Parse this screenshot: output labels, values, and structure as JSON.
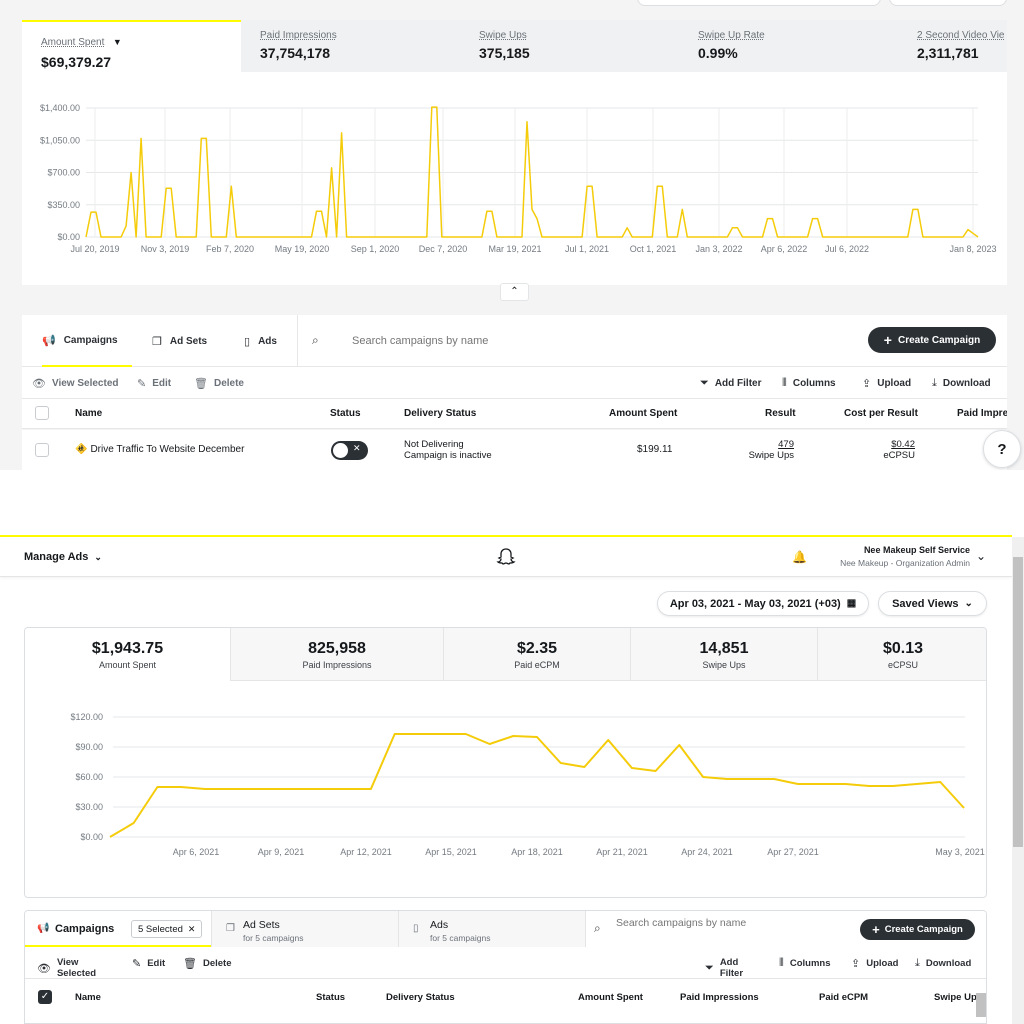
{
  "top": {
    "metrics": [
      {
        "label": "Amount Spent",
        "value": "$69,379.27"
      },
      {
        "label": "Paid Impressions",
        "value": "37,754,178"
      },
      {
        "label": "Swipe Ups",
        "value": "375,185"
      },
      {
        "label": "Swipe Up Rate",
        "value": "0.99%"
      },
      {
        "label": "2 Second Video Vie",
        "value": "2,311,781"
      }
    ],
    "tabs": [
      {
        "label": "Campaigns",
        "icon": "megaphone-icon"
      },
      {
        "label": "Ad Sets",
        "icon": "adsets-icon"
      },
      {
        "label": "Ads",
        "icon": "ad-phone-icon"
      }
    ],
    "search_placeholder": "Search campaigns by name",
    "create_label": "Create Campaign",
    "actions": {
      "view": "View Selected",
      "edit": "Edit",
      "delete": "Delete",
      "filter": "Add Filter",
      "columns": "Columns",
      "upload": "Upload",
      "download": "Download"
    },
    "columns": [
      "Name",
      "Status",
      "Delivery Status",
      "Amount Spent",
      "Result",
      "Cost per Result",
      "Paid Impres"
    ],
    "row": {
      "name": "Drive Traffic To Website December",
      "delivery_1": "Not Delivering",
      "delivery_2": "Campaign is inactive",
      "amount": "$199.11",
      "result": "479",
      "result_unit": "Swipe Ups",
      "cost": "$0.42",
      "cost_unit": "eCPSU"
    }
  },
  "bottom": {
    "manage_ads": "Manage Ads",
    "org_name": "Nee Makeup Self Service",
    "org_sub": "Nee Makeup - Organization Admin",
    "date_range": "Apr 03, 2021 - May 03, 2021 (+03)",
    "saved_views": "Saved Views",
    "metrics": [
      {
        "label": "Amount Spent",
        "value": "$1,943.75"
      },
      {
        "label": "Paid Impressions",
        "value": "825,958"
      },
      {
        "label": "Paid eCPM",
        "value": "$2.35"
      },
      {
        "label": "Swipe Ups",
        "value": "14,851"
      },
      {
        "label": "eCPSU",
        "value": "$0.13"
      }
    ],
    "tabs": {
      "campaigns": "Campaigns",
      "selected": "5 Selected",
      "adsets": "Ad Sets",
      "adsets_sub": "for 5 campaigns",
      "ads": "Ads",
      "ads_sub": "for 5 campaigns"
    },
    "search_placeholder": "Search campaigns by name",
    "create_label": "Create Campaign",
    "actions": {
      "view": "View Selected",
      "edit": "Edit",
      "delete": "Delete",
      "filter": "Add Filter",
      "columns": "Columns",
      "upload": "Upload",
      "download": "Download"
    },
    "columns": [
      "Name",
      "Status",
      "Delivery Status",
      "Amount Spent",
      "Paid Impressions",
      "Paid eCPM",
      "Swipe Up"
    ]
  },
  "colors": {
    "accent": "#fffc00",
    "line": "#f5cc0a",
    "dark": "#2b3034"
  },
  "chart_data": [
    {
      "type": "line",
      "xlabel": "",
      "ylabel": "",
      "yticks": [
        "$0.00",
        "$350.00",
        "$700.00",
        "$1,050.00",
        "$1,400.00"
      ],
      "ylim": [
        0,
        1400
      ],
      "xticks": [
        "Jul 20, 2019",
        "Nov 3, 2019",
        "Feb 7, 2020",
        "May 19, 2020",
        "Sep 1, 2020",
        "Dec 7, 2020",
        "Mar 19, 2021",
        "Jul 1, 2021",
        "Oct 1, 2021",
        "Jan 3, 2022",
        "Apr 6, 2022",
        "Jul 6, 2022",
        "Jan 8, 2023"
      ],
      "grid": true,
      "series": [
        {
          "values": [
            0,
            270,
            270,
            0,
            0,
            0,
            0,
            0,
            120,
            700,
            0,
            1070,
            0,
            0,
            0,
            0,
            530,
            530,
            0,
            0,
            0,
            0,
            0,
            1070,
            1070,
            0,
            0,
            0,
            0,
            550,
            0,
            0,
            0,
            0,
            0,
            0,
            0,
            0,
            0,
            0,
            0,
            0,
            0,
            0,
            0,
            0,
            280,
            280,
            0,
            750,
            0,
            1130,
            0,
            0,
            0,
            0,
            0,
            0,
            0,
            0,
            0,
            0,
            0,
            0,
            0,
            0,
            0,
            0,
            0,
            1410,
            1410,
            0,
            0,
            0,
            0,
            0,
            0,
            0,
            0,
            0,
            280,
            280,
            0,
            0,
            0,
            0,
            0,
            0,
            1250,
            300,
            200,
            0,
            0,
            0,
            0,
            0,
            0,
            0,
            0,
            0,
            550,
            550,
            0,
            0,
            0,
            0,
            0,
            0,
            100,
            0,
            0,
            0,
            0,
            0,
            550,
            550,
            0,
            0,
            0,
            300,
            0,
            0,
            0,
            0,
            0,
            0,
            0,
            0,
            0,
            100,
            100,
            0,
            0,
            0,
            0,
            0,
            200,
            200,
            0,
            0,
            0,
            0,
            0,
            0,
            0,
            200,
            200,
            0,
            0,
            0,
            0,
            0,
            0,
            0,
            0,
            0,
            0,
            0,
            0,
            0,
            0,
            0,
            0,
            0,
            0,
            300,
            300,
            0,
            0,
            0,
            0,
            0,
            0,
            0,
            0,
            0,
            80,
            40,
            0
          ]
        }
      ]
    },
    {
      "type": "line",
      "xlabel": "",
      "ylabel": "",
      "yticks": [
        "$0.00",
        "$30.00",
        "$60.00",
        "$90.00",
        "$120.00"
      ],
      "ylim": [
        0,
        120
      ],
      "xticks": [
        "Apr 6, 2021",
        "Apr 9, 2021",
        "Apr 12, 2021",
        "Apr 15, 2021",
        "Apr 18, 2021",
        "Apr 21, 2021",
        "Apr 24, 2021",
        "Apr 27, 2021",
        "May 3, 2021"
      ],
      "grid": true,
      "series": [
        {
          "values": [
            0,
            14,
            50,
            50,
            48,
            48,
            48,
            48,
            48,
            48,
            48,
            48,
            103,
            103,
            103,
            103,
            93,
            101,
            100,
            74,
            70,
            97,
            69,
            66,
            92,
            60,
            58,
            58,
            58,
            53,
            53,
            53,
            51,
            51,
            53,
            55,
            29
          ]
        }
      ]
    }
  ]
}
